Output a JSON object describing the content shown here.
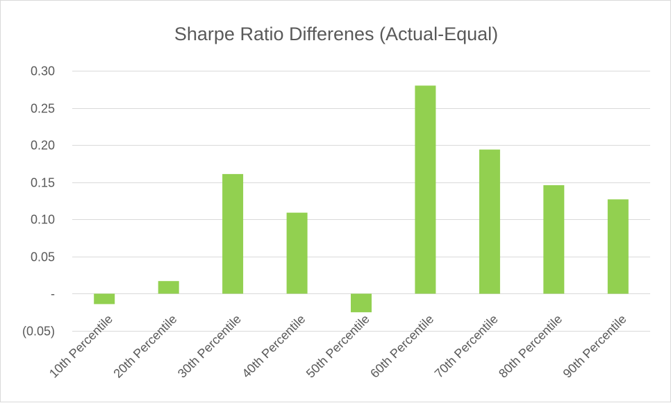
{
  "chart_data": {
    "type": "bar",
    "title": "Sharpe Ratio Differenes (Actual-Equal)",
    "xlabel": "",
    "ylabel": "",
    "categories": [
      "10th Percentile",
      "20th Percentile",
      "30th Percentile",
      "40th Percentile",
      "50th Percentile",
      "60th Percentile",
      "70th Percentile",
      "80th Percentile",
      "90th Percentile"
    ],
    "values": [
      -0.014,
      0.017,
      0.161,
      0.109,
      -0.025,
      0.28,
      0.194,
      0.146,
      0.127
    ],
    "ylim": [
      -0.05,
      0.3
    ],
    "yticks": [
      0.3,
      0.25,
      0.2,
      0.15,
      0.1,
      0.05,
      0.0,
      -0.05
    ],
    "ytick_labels": [
      "0.30",
      "0.25",
      "0.20",
      "0.15",
      "0.10",
      "0.05",
      "-",
      "(0.05)"
    ],
    "grid": true,
    "legend": "none",
    "bar_color": "#92d050",
    "gridline_color": "#d9d9d9",
    "text_color": "#595959"
  }
}
